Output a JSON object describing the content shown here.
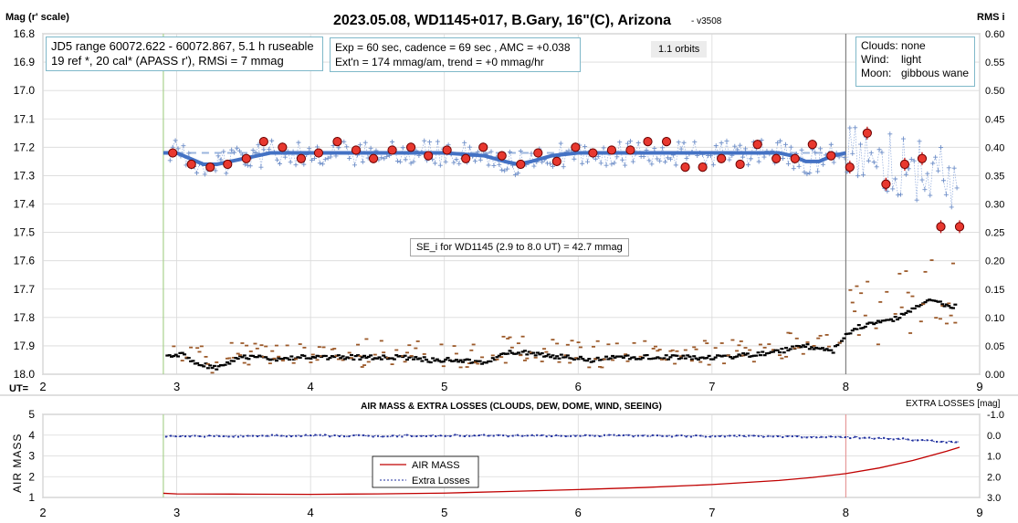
{
  "header": {
    "title": "2023.05.08, WD1145+017, B.Gary, 16\"(C), Arizona",
    "version": "- v3508",
    "left_axis_label": "Mag (r' scale)",
    "right_axis_label": "RMS i",
    "ut_label": "UT="
  },
  "annotations": {
    "jd_line1": "JD5 range 60072.622 - 60072.867, 5.1 h ruseable",
    "jd_line2": "19 ref *, 20 cal*  (APASS r'), RMSi = 7 mmag",
    "exp_line1": "Exp = 60 sec, cadence = 69 sec , AMC = +0.038",
    "exp_line2": "Ext'n = 174 mmag/am, trend = +0 mmag/hr",
    "orbits": "1.1 orbits",
    "clouds_key": "Clouds:",
    "clouds_val": "none",
    "wind_key": "Wind:",
    "wind_val": "light",
    "moon_key": "Moon:",
    "moon_val": "gibbous wane",
    "se": "SE_i for WD1145 (2.9 to 8.0 UT) = 42.7 mmag"
  },
  "lower": {
    "title": "AIR MASS & EXTRA LOSSES (CLOUDS, DEW, DOME, WIND, SEEING)",
    "right_axis_label": "EXTRA LOSSES [mag]",
    "left_axis_label": "AIR MASS",
    "legend_air": "AIR MASS",
    "legend_extra": "Extra Losses"
  },
  "colors": {
    "blue_model": "#4472c4",
    "raw": "#8ea9db",
    "binned": "#e8382f",
    "rms": "#000000",
    "rms_alt": "#9c5a2a",
    "airmass": "#c00000",
    "extra": "#1f2f9e",
    "grid": "#d9d9d9",
    "green_line": "#a9d18e",
    "grey_line": "#7f7f7f",
    "red_line": "#e69999"
  },
  "chart_data": [
    {
      "type": "scatter",
      "title": "2023.05.08, WD1145+017, B.Gary, 16\"(C), Arizona",
      "xlabel": "UT=",
      "ylabel": "Mag (r' scale)",
      "y2label": "RMS i",
      "xlim": [
        2,
        9
      ],
      "ylim": [
        18.0,
        16.8
      ],
      "y2lim": [
        0.0,
        0.6
      ],
      "x_ticks": [
        "2",
        "3",
        "4",
        "5",
        "6",
        "7",
        "8",
        "9"
      ],
      "y_ticks": [
        "16.8",
        "16.9",
        "17.0",
        "17.1",
        "17.2",
        "17.3",
        "17.4",
        "17.5",
        "17.6",
        "17.7",
        "17.8",
        "17.9",
        "18.0"
      ],
      "y2_ticks": [
        "0.60",
        "0.55",
        "0.50",
        "0.45",
        "0.40",
        "0.35",
        "0.30",
        "0.25",
        "0.20",
        "0.15",
        "0.10",
        "0.05",
        "0.00"
      ],
      "vertical_lines": [
        2.9,
        8.0
      ],
      "baseline_mag": 17.22,
      "series": [
        {
          "type": "line",
          "x": [
            2.9,
            3.0,
            3.1,
            3.2,
            3.3,
            3.4,
            3.5,
            3.6,
            3.7,
            3.8,
            4.0,
            4.5,
            5.0,
            5.3,
            5.45,
            5.55,
            5.65,
            5.8,
            6.0,
            6.5,
            7.0,
            7.2,
            7.5,
            7.6,
            7.7,
            7.8,
            7.9,
            8.0
          ],
          "y": [
            17.22,
            17.22,
            17.24,
            17.26,
            17.26,
            17.25,
            17.24,
            17.23,
            17.22,
            17.22,
            17.22,
            17.22,
            17.22,
            17.23,
            17.25,
            17.26,
            17.25,
            17.23,
            17.22,
            17.22,
            17.22,
            17.22,
            17.22,
            17.23,
            17.25,
            17.25,
            17.23,
            17.22
          ]
        },
        {
          "type": "scatter",
          "x": [
            2.97,
            3.11,
            3.25,
            3.38,
            3.52,
            3.65,
            3.79,
            3.93,
            4.06,
            4.2,
            4.34,
            4.47,
            4.61,
            4.75,
            4.88,
            5.02,
            5.16,
            5.29,
            5.43,
            5.57,
            5.7,
            5.84,
            5.98,
            6.11,
            6.25,
            6.39,
            6.52,
            6.66,
            6.8,
            6.93,
            7.07,
            7.21,
            7.34,
            7.48,
            7.62,
            7.75,
            7.89,
            8.03,
            8.16,
            8.3,
            8.44,
            8.57,
            8.71,
            8.85
          ],
          "y": [
            17.22,
            17.26,
            17.27,
            17.26,
            17.24,
            17.18,
            17.2,
            17.24,
            17.22,
            17.18,
            17.21,
            17.24,
            17.21,
            17.2,
            17.23,
            17.21,
            17.24,
            17.2,
            17.23,
            17.26,
            17.22,
            17.25,
            17.2,
            17.22,
            17.21,
            17.21,
            17.18,
            17.18,
            17.27,
            17.27,
            17.24,
            17.26,
            17.19,
            17.24,
            17.24,
            17.19,
            17.23,
            17.27,
            17.15,
            17.33,
            17.26,
            17.24,
            17.48,
            17.48
          ]
        },
        {
          "type": "scatter",
          "axis": "right",
          "x": [
            2.95,
            3.05,
            3.15,
            3.3,
            3.45,
            3.6,
            3.75,
            3.9,
            4.1,
            4.3,
            4.5,
            4.7,
            4.9,
            5.1,
            5.3,
            5.5,
            5.7,
            5.9,
            6.1,
            6.3,
            6.5,
            6.7,
            6.9,
            7.1,
            7.3,
            7.5,
            7.7,
            7.9,
            8.05,
            8.2,
            8.4,
            8.6,
            8.8
          ],
          "y": [
            0.03,
            0.035,
            0.02,
            0.01,
            0.03,
            0.03,
            0.025,
            0.03,
            0.03,
            0.03,
            0.03,
            0.03,
            0.025,
            0.025,
            0.02,
            0.04,
            0.035,
            0.03,
            0.025,
            0.03,
            0.03,
            0.03,
            0.03,
            0.03,
            0.035,
            0.04,
            0.05,
            0.04,
            0.08,
            0.09,
            0.1,
            0.13,
            0.12
          ]
        }
      ]
    },
    {
      "type": "line",
      "title": "AIR MASS & EXTRA LOSSES (CLOUDS, DEW, DOME, WIND, SEEING)",
      "xlabel": "",
      "ylabel": "AIR MASS",
      "y2label": "EXTRA LOSSES [mag]",
      "xlim": [
        2,
        9
      ],
      "ylim": [
        1,
        5
      ],
      "y2lim": [
        3.0,
        -1.0
      ],
      "x_ticks": [
        "2",
        "3",
        "4",
        "5",
        "6",
        "7",
        "8",
        "9"
      ],
      "y_ticks": [
        "5",
        "4",
        "3",
        "2",
        "1"
      ],
      "y2_ticks": [
        "-1.0",
        "0.0",
        "1.0",
        "2.0",
        "3.0"
      ],
      "vertical_lines": [
        2.9,
        8.0
      ],
      "legend_placement": "bottom-center",
      "series": [
        {
          "name": "AIR MASS",
          "x": [
            2.9,
            3.0,
            3.5,
            4.0,
            4.5,
            5.0,
            5.5,
            6.0,
            6.5,
            7.0,
            7.5,
            7.75,
            8.0,
            8.25,
            8.5,
            8.75,
            8.85
          ],
          "y": [
            1.2,
            1.17,
            1.16,
            1.15,
            1.17,
            1.21,
            1.29,
            1.38,
            1.48,
            1.62,
            1.82,
            1.96,
            2.15,
            2.42,
            2.78,
            3.22,
            3.42
          ]
        },
        {
          "name": "Extra Losses",
          "axis": "right",
          "x": [
            2.9,
            3.5,
            4.0,
            4.5,
            5.0,
            5.5,
            6.0,
            6.5,
            7.0,
            7.5,
            8.0,
            8.3,
            8.5,
            8.7,
            8.85
          ],
          "y": [
            0.05,
            0.04,
            0.02,
            0.04,
            0.02,
            0.03,
            0.02,
            0.03,
            0.04,
            0.06,
            0.1,
            0.15,
            0.22,
            0.3,
            0.35
          ]
        }
      ]
    }
  ]
}
